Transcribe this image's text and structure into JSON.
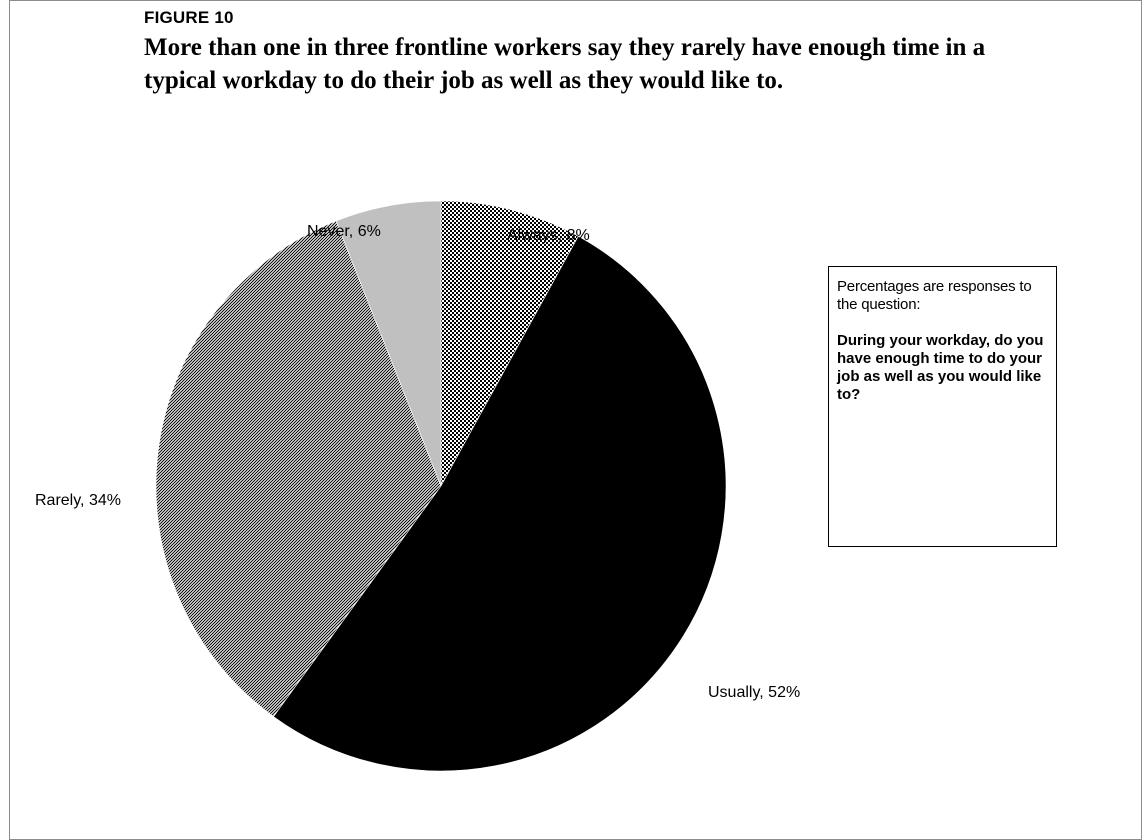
{
  "figure_label": "FIGURE 10",
  "title": "More than one in three frontline workers say they rarely have enough time in a typical workday to do their job as well as they would like to.",
  "note": {
    "intro": "Percentages are responses to the question:",
    "question": "During your workday, do you have enough time to do your job as well as you would like to?"
  },
  "chart_data": {
    "type": "pie",
    "title": "More than one in three frontline workers say they rarely have enough time in a typical workday to do their job as well as they would like to.",
    "start": "12 o'clock",
    "direction": "clockwise",
    "slices": [
      {
        "label": "Always",
        "value": 8,
        "display": "Always, 8%",
        "fill": "checker"
      },
      {
        "label": "Usually",
        "value": 52,
        "display": "Usually, 52%",
        "fill": "#000000"
      },
      {
        "label": "Rarely",
        "value": 34,
        "display": "Rarely, 34%",
        "fill": "diagonal-hatch"
      },
      {
        "label": "Never",
        "value": 6,
        "display": "Never, 6%",
        "fill": "#c0c0c0"
      }
    ]
  }
}
